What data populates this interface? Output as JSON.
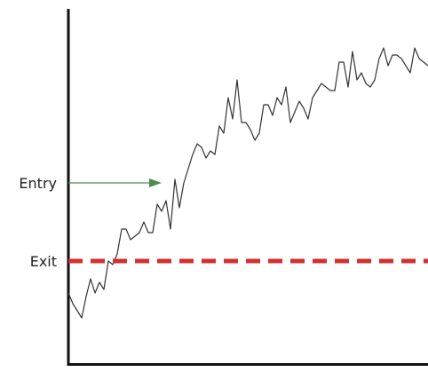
{
  "chart_data": {
    "type": "line",
    "title": "",
    "xlabel": "",
    "ylabel": "",
    "grid": false,
    "x": [
      0,
      1,
      2,
      3,
      4,
      5,
      6,
      7,
      8,
      9,
      10,
      11,
      12,
      13,
      14,
      15,
      16,
      17,
      18,
      19,
      20,
      21,
      22,
      23,
      24,
      25,
      26,
      27,
      28,
      29,
      30,
      31,
      32,
      33,
      34,
      35,
      36,
      37,
      38,
      39,
      40,
      41,
      42,
      43,
      44,
      45,
      46,
      47,
      48,
      49,
      50,
      51,
      52,
      53,
      54,
      55,
      56,
      57,
      58,
      59,
      60,
      61,
      62,
      63,
      64,
      65,
      66,
      67,
      68,
      69,
      70,
      71,
      72,
      73,
      74,
      75,
      76,
      77,
      78,
      79,
      80,
      81
    ],
    "series": [
      {
        "values": [
          19,
          20,
          18,
          17,
          22,
          26,
          22,
          24,
          22,
          28,
          28,
          31,
          36,
          36,
          33,
          35,
          36,
          39,
          36,
          36,
          43,
          42,
          44,
          37,
          49,
          43,
          48,
          53,
          56,
          59,
          58,
          56,
          57,
          57,
          64,
          62,
          71,
          67,
          76,
          65,
          66,
          64,
          61,
          63,
          69,
          69,
          67,
          71,
          70,
          74,
          66,
          68,
          71,
          68,
          66,
          71,
          73,
          75,
          74,
          74,
          73,
          80,
          81,
          74,
          83,
          77,
          79,
          76,
          75,
          77,
          81,
          84,
          80,
          82,
          82,
          81,
          80,
          78,
          84,
          81,
          80,
          79
        ]
      }
    ],
    "series_precise": [
      20,
      17,
      15,
      13,
      19,
      24,
      20,
      23,
      21,
      29,
      28,
      31,
      38,
      38,
      35,
      36,
      37,
      40,
      37,
      37,
      45,
      43,
      46,
      38,
      52,
      44,
      51,
      55,
      59,
      62,
      61,
      58,
      60,
      59,
      67,
      65,
      75,
      69,
      80,
      68,
      68,
      66,
      63,
      65,
      73,
      73,
      70,
      75,
      73,
      78,
      68,
      71,
      74,
      72,
      69,
      75,
      77,
      79,
      78,
      77,
      77,
      85,
      85,
      78,
      88,
      80,
      82,
      79,
      78,
      80,
      86,
      89,
      84,
      87,
      87,
      86,
      84,
      82,
      89,
      86,
      85,
      84
    ],
    "xlim": [
      0,
      100
    ],
    "ylim": [
      0,
      100
    ],
    "reference_lines": [
      {
        "label": "Entry",
        "y": 51,
        "style": "arrow",
        "color": "#4e8a4e"
      },
      {
        "label": "Exit",
        "y": 29,
        "style": "dashed",
        "color": "#d32f2f"
      }
    ],
    "colors": {
      "line": "#333333",
      "axis": "#111111"
    }
  }
}
